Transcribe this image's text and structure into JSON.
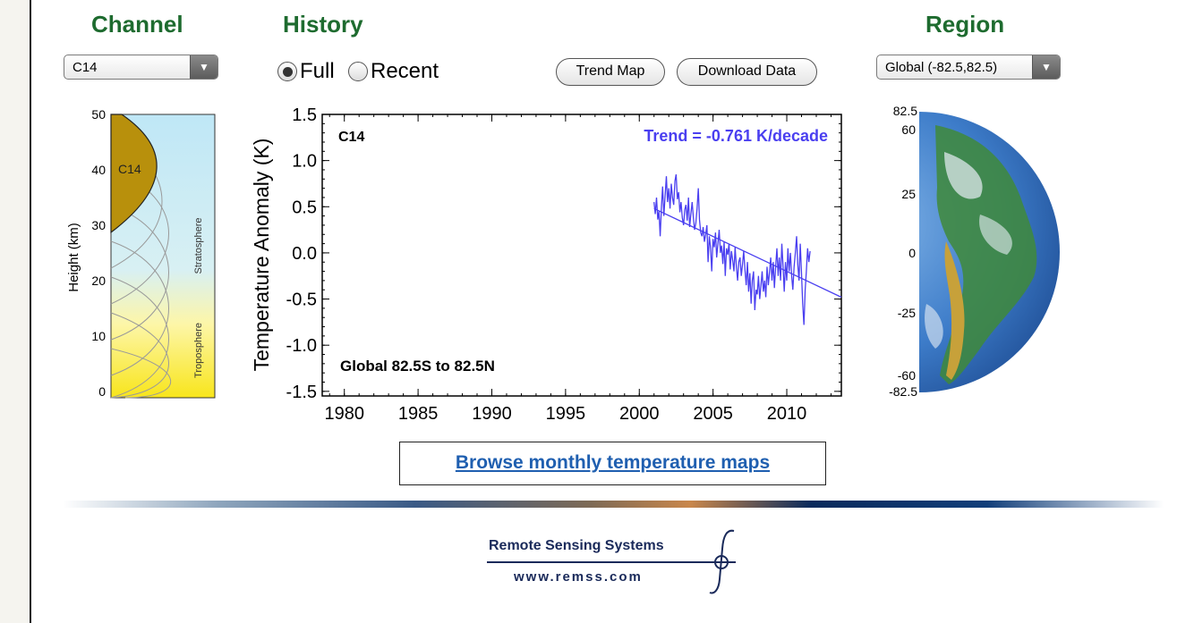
{
  "headers": {
    "channel": "Channel",
    "history": "History",
    "region": "Region"
  },
  "channel_select": {
    "value": "C14"
  },
  "history": {
    "full_label": "Full",
    "recent_label": "Recent",
    "selected": "Full"
  },
  "buttons": {
    "trend_map": "Trend Map",
    "download_data": "Download Data"
  },
  "region_select": {
    "value": "Global (-82.5,82.5)"
  },
  "height_panel": {
    "ylabel": "Height  (km)",
    "ticks": [
      "50",
      "40",
      "30",
      "20",
      "10",
      "0"
    ],
    "channel_label": "C14",
    "stratosphere_label": "Stratosphere",
    "troposphere_label": "Troposphere"
  },
  "chart_data": {
    "type": "line",
    "ylabel": "Temperature Anomaly (K)",
    "xlim": [
      1978.5,
      2013.7
    ],
    "ylim": [
      -1.55,
      1.5
    ],
    "xticks": [
      "1980",
      "1985",
      "1990",
      "1995",
      "2000",
      "2005",
      "2010"
    ],
    "yticks": [
      "1.5",
      "1.0",
      "0.5",
      "0.0",
      "-0.5",
      "-1.0",
      "-1.5"
    ],
    "channel_label": "C14",
    "trend_label": "Trend = -0.761 K/decade",
    "region_label": "Global  82.5S to  82.5N",
    "series_color": "#4a3ff0",
    "series": [
      {
        "x_start": 2001.0,
        "step": 0.0833,
        "values": [
          0.55,
          0.42,
          0.6,
          0.36,
          0.45,
          0.18,
          0.5,
          0.72,
          0.4,
          0.62,
          0.83,
          0.55,
          0.7,
          0.48,
          0.75,
          0.6,
          0.52,
          0.78,
          0.85,
          0.58,
          0.66,
          0.44,
          0.55,
          0.38,
          0.3,
          0.47,
          0.52,
          0.35,
          0.6,
          0.28,
          0.42,
          0.55,
          0.38,
          0.25,
          0.32,
          0.48,
          0.7,
          0.36,
          0.22,
          0.18,
          0.28,
          0.12,
          0.2,
          0.3,
          -0.1,
          0.18,
          0.05,
          -0.2,
          0.15,
          0.06,
          0.22,
          -0.05,
          0.1,
          0.25,
          0.0,
          0.08,
          -0.12,
          0.12,
          -0.25,
          0.05,
          -0.02,
          0.1,
          -0.18,
          0.02,
          -0.08,
          -0.2,
          0.06,
          -0.15,
          -0.3,
          -0.1,
          -0.05,
          -0.25,
          -0.12,
          0.02,
          -0.18,
          -0.35,
          -0.1,
          -0.42,
          -0.22,
          -0.55,
          -0.3,
          -0.2,
          -0.62,
          -0.4,
          -0.45,
          -0.25,
          -0.5,
          -0.35,
          -0.2,
          -0.42,
          -0.3,
          -0.48,
          -0.15,
          -0.35,
          -0.2,
          -0.05,
          -0.3,
          -0.1,
          -0.38,
          -0.15,
          0.05,
          -0.25,
          -0.05,
          -0.3,
          0.1,
          -0.15,
          -0.42,
          -0.1,
          -0.3,
          0.05,
          -0.2,
          0.0,
          -0.25,
          -0.4,
          -0.15,
          0.0,
          0.18,
          -0.12,
          -0.3,
          0.1,
          -0.2,
          -0.55,
          -0.78,
          -0.4,
          -0.2,
          0.05,
          -0.1,
          0.02
        ]
      }
    ],
    "trend": {
      "x0": 2001.0,
      "y0": 0.48,
      "x1": 2013.7,
      "y1": -0.48
    }
  },
  "globe": {
    "ticks": [
      "82.5",
      "60",
      "25",
      "0",
      "-25",
      "-60",
      "-82.5"
    ]
  },
  "browse_link": "Browse monthly temperature maps",
  "footer": {
    "logo_title": "Remote Sensing Systems",
    "logo_url": "www.remss.com"
  }
}
